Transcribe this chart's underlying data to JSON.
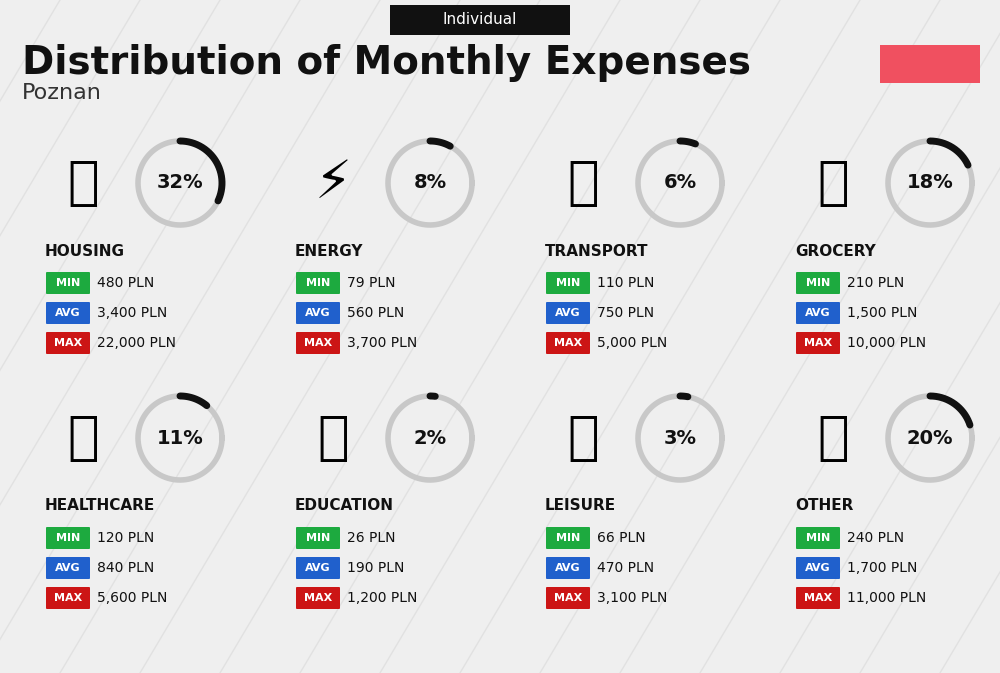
{
  "title": "Distribution of Monthly Expenses",
  "subtitle": "Individual",
  "city": "Poznan",
  "bg_color": "#efefef",
  "header_bg": "#111111",
  "header_text_color": "#ffffff",
  "title_color": "#111111",
  "city_color": "#333333",
  "red_box_color": "#f05060",
  "categories": [
    {
      "name": "HOUSING",
      "pct": 32,
      "min": "480 PLN",
      "avg": "3,400 PLN",
      "max": "22,000 PLN",
      "row": 0,
      "col": 0
    },
    {
      "name": "ENERGY",
      "pct": 8,
      "min": "79 PLN",
      "avg": "560 PLN",
      "max": "3,700 PLN",
      "row": 0,
      "col": 1
    },
    {
      "name": "TRANSPORT",
      "pct": 6,
      "min": "110 PLN",
      "avg": "750 PLN",
      "max": "5,000 PLN",
      "row": 0,
      "col": 2
    },
    {
      "name": "GROCERY",
      "pct": 18,
      "min": "210 PLN",
      "avg": "1,500 PLN",
      "max": "10,000 PLN",
      "row": 0,
      "col": 3
    },
    {
      "name": "HEALTHCARE",
      "pct": 11,
      "min": "120 PLN",
      "avg": "840 PLN",
      "max": "5,600 PLN",
      "row": 1,
      "col": 0
    },
    {
      "name": "EDUCATION",
      "pct": 2,
      "min": "26 PLN",
      "avg": "190 PLN",
      "max": "1,200 PLN",
      "row": 1,
      "col": 1
    },
    {
      "name": "LEISURE",
      "pct": 3,
      "min": "66 PLN",
      "avg": "470 PLN",
      "max": "3,100 PLN",
      "row": 1,
      "col": 2
    },
    {
      "name": "OTHER",
      "pct": 20,
      "min": "240 PLN",
      "avg": "1,700 PLN",
      "max": "11,000 PLN",
      "row": 1,
      "col": 3
    }
  ],
  "min_color": "#1daa3f",
  "avg_color": "#2060cc",
  "max_color": "#cc1515",
  "label_text_color": "#ffffff",
  "value_text_color": "#111111",
  "donut_filled_color": "#111111",
  "donut_empty_color": "#c8c8c8",
  "diag_line_color": "#d8d8d8"
}
